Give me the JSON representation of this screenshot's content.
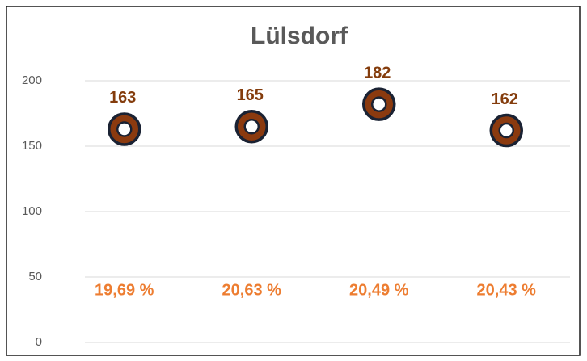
{
  "chart_data": {
    "type": "scatter",
    "title": "Lülsdorf",
    "categories": [
      null,
      null,
      null,
      null
    ],
    "values": [
      163,
      165,
      182,
      162
    ],
    "percent_labels": [
      "19,69 %",
      "20,63 %",
      "20,49 %",
      "20,43 %"
    ],
    "color": "#8b3a0f",
    "ylim": [
      0,
      200
    ],
    "yticks": [
      0,
      50,
      100,
      150,
      200
    ],
    "grid": true
  }
}
